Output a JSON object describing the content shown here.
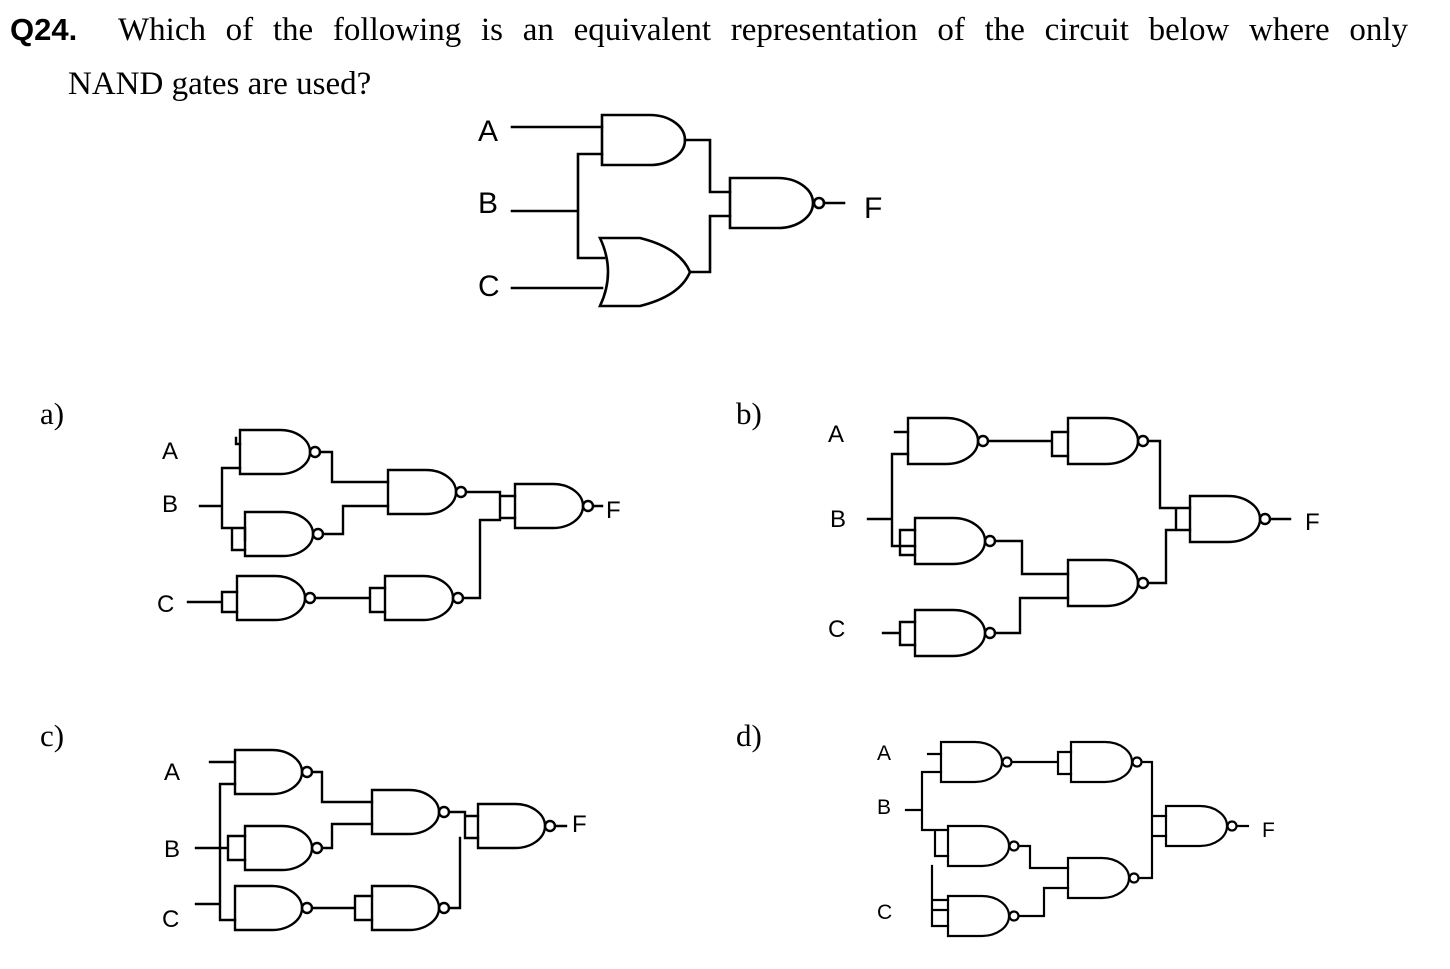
{
  "question": {
    "number": "Q24.",
    "line1": "Which of the following is an equivalent representation of the circuit below where only",
    "line2": "NAND gates are used?"
  },
  "main_circuit": {
    "inputs": [
      "A",
      "B",
      "C"
    ],
    "output": "F"
  },
  "options": [
    {
      "letter": "a)",
      "inputs": [
        "A",
        "B",
        "C"
      ],
      "output": "F"
    },
    {
      "letter": "b)",
      "inputs": [
        "A",
        "B",
        "C"
      ],
      "output": "F"
    },
    {
      "letter": "c)",
      "inputs": [
        "A",
        "B",
        "C"
      ],
      "output": "F"
    },
    {
      "letter": "d)",
      "inputs": [
        "A",
        "B",
        "C"
      ],
      "output": "F"
    }
  ]
}
